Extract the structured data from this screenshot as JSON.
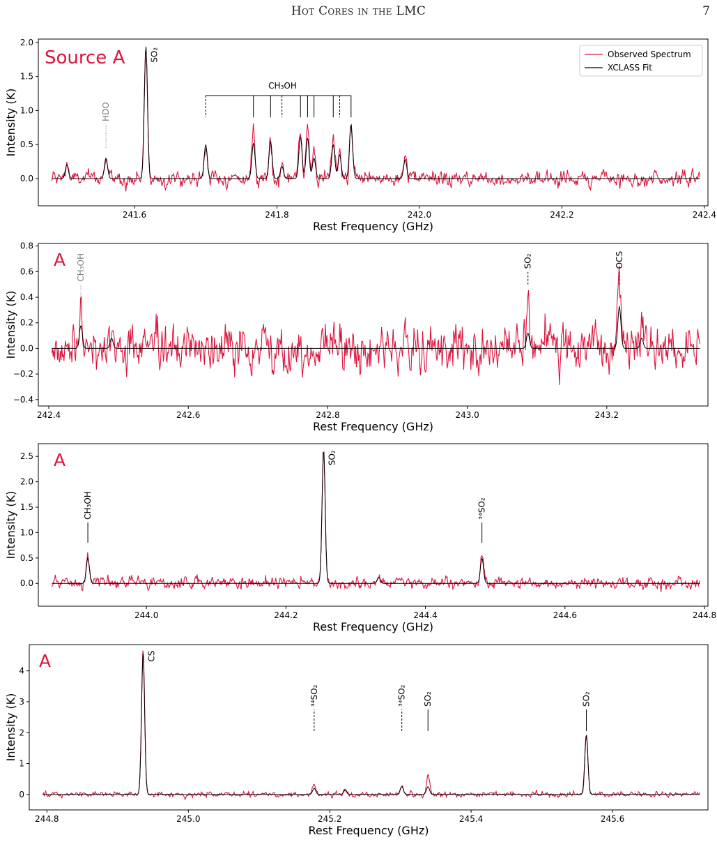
{
  "page": {
    "header_title": "Hot Cores in the LMC",
    "page_number": "7"
  },
  "colors": {
    "observed": "#dc143c",
    "fit": "#000000",
    "panel_label": "#dc143c",
    "tentative_label": "#808080"
  },
  "chart_data": [
    {
      "type": "line",
      "panel_label": "Source A",
      "xlabel": "Rest Frequency (GHz)",
      "ylabel": "Intensity (K)",
      "xlim": [
        241.465,
        242.405
      ],
      "ylim": [
        -0.4,
        2.05
      ],
      "xticks": [
        241.6,
        241.8,
        242.0,
        242.2,
        242.4
      ],
      "xtick_labels": [
        "241.6",
        "241.8",
        "242.0",
        "242.2",
        "242.4"
      ],
      "yticks": [
        0.0,
        0.5,
        1.0,
        1.5,
        2.0
      ],
      "ytick_labels": [
        "0.0",
        "0.5",
        "1.0",
        "1.5",
        "2.0"
      ],
      "noise_rms": 0.08,
      "legend": {
        "position": "top-right",
        "entries": [
          "Observed Spectrum",
          "XCLASS Fit"
        ]
      },
      "lines": [
        {
          "x": 241.505,
          "peak": 0.22,
          "fit": 0.2
        },
        {
          "x": 241.56,
          "peak": 0.32,
          "fit": 0.3
        },
        {
          "x": 241.616,
          "peak": 1.95,
          "fit": 1.95
        },
        {
          "x": 241.7,
          "peak": 0.52,
          "fit": 0.5
        },
        {
          "x": 241.767,
          "peak": 0.7,
          "fit": 0.52
        },
        {
          "x": 241.791,
          "peak": 0.58,
          "fit": 0.55
        },
        {
          "x": 241.807,
          "peak": 0.2,
          "fit": 0.18
        },
        {
          "x": 241.833,
          "peak": 0.68,
          "fit": 0.62
        },
        {
          "x": 241.843,
          "peak": 0.72,
          "fit": 0.6
        },
        {
          "x": 241.852,
          "peak": 0.35,
          "fit": 0.3
        },
        {
          "x": 241.879,
          "peak": 0.53,
          "fit": 0.5
        },
        {
          "x": 241.888,
          "peak": 0.42,
          "fit": 0.35
        },
        {
          "x": 241.904,
          "peak": 0.82,
          "fit": 0.8
        },
        {
          "x": 241.98,
          "peak": 0.3,
          "fit": 0.28
        }
      ],
      "annotations": [
        {
          "label": "HDO",
          "x": 241.56,
          "y0": 0.45,
          "y1": 0.8,
          "style": "dotted",
          "tentative": true,
          "rotated": true
        },
        {
          "label": "SO₂",
          "x": 241.616,
          "y0": null,
          "y1": 1.95,
          "style": "none",
          "tentative": false,
          "rotated": true
        }
      ],
      "bracket": {
        "label": "CH₃OH",
        "y_top": 1.22,
        "y_bottom": 0.9,
        "ticks": [
          {
            "x": 241.7,
            "style": "dashed"
          },
          {
            "x": 241.767,
            "style": "solid"
          },
          {
            "x": 241.791,
            "style": "solid"
          },
          {
            "x": 241.807,
            "style": "dashed"
          },
          {
            "x": 241.833,
            "style": "solid"
          },
          {
            "x": 241.843,
            "style": "solid"
          },
          {
            "x": 241.852,
            "style": "solid"
          },
          {
            "x": 241.879,
            "style": "solid"
          },
          {
            "x": 241.888,
            "style": "dashed"
          },
          {
            "x": 241.904,
            "style": "solid"
          }
        ]
      }
    },
    {
      "type": "line",
      "panel_label": "A",
      "xlabel": "Rest Frequency (GHz)",
      "ylabel": "Intensity (K)",
      "xlim": [
        242.385,
        243.345
      ],
      "ylim": [
        -0.45,
        0.82
      ],
      "xticks": [
        242.4,
        242.6,
        242.8,
        243.0,
        243.2
      ],
      "xtick_labels": [
        "242.4",
        "242.6",
        "242.8",
        "243.0",
        "243.2"
      ],
      "yticks": [
        -0.4,
        -0.2,
        0.0,
        0.2,
        0.4,
        0.6,
        0.8
      ],
      "ytick_labels": [
        "−0.4",
        "−0.2",
        "0.0",
        "0.2",
        "0.4",
        "0.6",
        "0.8"
      ],
      "noise_rms": 0.13,
      "lines": [
        {
          "x": 242.446,
          "peak": 0.33,
          "fit": 0.18
        },
        {
          "x": 242.49,
          "peak": 0.1,
          "fit": 0.08
        },
        {
          "x": 243.087,
          "peak": 0.43,
          "fit": 0.12
        },
        {
          "x": 243.218,
          "peak": 0.44,
          "fit": 0.33
        },
        {
          "x": 243.25,
          "peak": 0.1,
          "fit": 0.08
        }
      ],
      "annotations": [
        {
          "label": "CH₃OH",
          "x": 242.446,
          "y0": 0.4,
          "y1": 0.5,
          "style": "dotted",
          "tentative": true,
          "rotated": true
        },
        {
          "label": "SO₂",
          "x": 243.087,
          "y0": 0.5,
          "y1": 0.6,
          "style": "dashed",
          "tentative": false,
          "rotated": true
        },
        {
          "label": "OCS",
          "x": 243.218,
          "y0": 0.5,
          "y1": 0.6,
          "style": "dashed",
          "tentative": false,
          "rotated": true
        }
      ]
    },
    {
      "type": "line",
      "panel_label": "A",
      "xlabel": "Rest Frequency (GHz)",
      "ylabel": "Intensity (K)",
      "xlim": [
        243.845,
        244.805
      ],
      "ylim": [
        -0.45,
        2.75
      ],
      "xticks": [
        244.0,
        244.2,
        244.4,
        244.6,
        244.8
      ],
      "xtick_labels": [
        "244.0",
        "244.2",
        "244.4",
        "244.6",
        "244.8"
      ],
      "yticks": [
        0.0,
        0.5,
        1.0,
        1.5,
        2.0,
        2.5
      ],
      "ytick_labels": [
        "0.0",
        "0.5",
        "1.0",
        "1.5",
        "2.0",
        "2.5"
      ],
      "noise_rms": 0.08,
      "lines": [
        {
          "x": 243.916,
          "peak": 0.62,
          "fit": 0.5
        },
        {
          "x": 244.254,
          "peak": 2.65,
          "fit": 2.65
        },
        {
          "x": 244.333,
          "peak": 0.15,
          "fit": 0.12
        },
        {
          "x": 244.481,
          "peak": 0.55,
          "fit": 0.5
        }
      ],
      "annotations": [
        {
          "label": "CH₃OH",
          "x": 243.916,
          "y0": 0.8,
          "y1": 1.2,
          "style": "solid",
          "tentative": false,
          "rotated": true
        },
        {
          "label": "SO₂",
          "x": 244.254,
          "y0": null,
          "y1": 2.65,
          "style": "none",
          "tentative": false,
          "rotated": true
        },
        {
          "label": "³⁴SO₂",
          "x": 244.481,
          "y0": 0.8,
          "y1": 1.2,
          "style": "solid",
          "tentative": false,
          "rotated": true
        }
      ]
    },
    {
      "type": "line",
      "panel_label": "A",
      "xlabel": "Rest Frequency (GHz)",
      "ylabel": "Intensity (K)",
      "xlim": [
        244.775,
        245.735
      ],
      "ylim": [
        -0.5,
        4.85
      ],
      "xticks": [
        244.8,
        245.0,
        245.2,
        245.4,
        245.6
      ],
      "xtick_labels": [
        "244.8",
        "245.0",
        "245.2",
        "245.4",
        "245.6"
      ],
      "yticks": [
        0,
        1,
        2,
        3,
        4
      ],
      "ytick_labels": [
        "0",
        "1",
        "2",
        "3",
        "4"
      ],
      "noise_rms": 0.06,
      "lines": [
        {
          "x": 244.936,
          "peak": 4.7,
          "fit": 4.6
        },
        {
          "x": 245.178,
          "peak": 0.38,
          "fit": 0.2
        },
        {
          "x": 245.222,
          "peak": 0.22,
          "fit": 0.15
        },
        {
          "x": 245.302,
          "peak": 0.3,
          "fit": 0.26
        },
        {
          "x": 245.339,
          "peak": 0.65,
          "fit": 0.25
        },
        {
          "x": 245.563,
          "peak": 1.95,
          "fit": 1.95
        }
      ],
      "annotations": [
        {
          "label": "CS",
          "x": 244.936,
          "y0": null,
          "y1": 4.7,
          "style": "none",
          "tentative": false,
          "rotated": true
        },
        {
          "label": "³⁴SO₂",
          "x": 245.178,
          "y0": 2.05,
          "y1": 2.75,
          "style": "dashed",
          "tentative": false,
          "rotated": true
        },
        {
          "label": "³⁴SO₂",
          "x": 245.302,
          "y0": 2.05,
          "y1": 2.75,
          "style": "dashed",
          "tentative": false,
          "rotated": true
        },
        {
          "label": "SO₂",
          "x": 245.339,
          "y0": 2.05,
          "y1": 2.75,
          "style": "solid",
          "tentative": false,
          "rotated": true
        },
        {
          "label": "SO₂",
          "x": 245.563,
          "y0": 2.05,
          "y1": 2.75,
          "style": "solid",
          "tentative": false,
          "rotated": true
        }
      ]
    }
  ]
}
